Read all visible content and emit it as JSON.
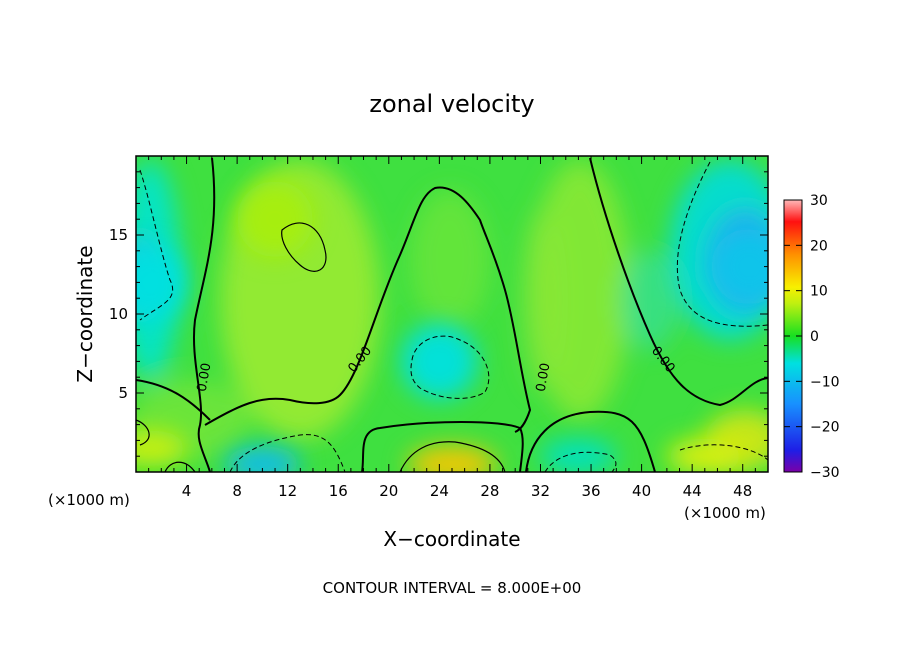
{
  "chart_data": {
    "type": "heatmap",
    "title": "zonal velocity",
    "xlabel": "X−coordinate",
    "ylabel": "Z−coordinate",
    "x_unit": "(×1000 m)",
    "y_unit": "(×1000 m)",
    "xlim": [
      0,
      50
    ],
    "ylim": [
      0,
      20
    ],
    "x_ticks": [
      "4",
      "8",
      "12",
      "16",
      "20",
      "24",
      "28",
      "32",
      "36",
      "40",
      "44",
      "48"
    ],
    "y_ticks": [
      "5",
      "10",
      "15"
    ],
    "colorbar": {
      "range": [
        -30,
        30
      ],
      "ticks": [
        "30",
        "20",
        "10",
        "0",
        "−10",
        "−20",
        "−30"
      ]
    },
    "contour_label": "0.00",
    "footer": "CONTOUR INTERVAL = 8.000E+00",
    "features": [
      {
        "x": 11,
        "z": 16,
        "value": 6
      },
      {
        "x": 24,
        "z": 7,
        "value": -6
      },
      {
        "x": 25,
        "z": 0.5,
        "value": 14
      },
      {
        "x": 48.5,
        "z": 13,
        "value": -9
      },
      {
        "x": 1,
        "z": 12,
        "value": -6
      },
      {
        "x": 10,
        "z": 0.5,
        "value": -10
      },
      {
        "x": 35,
        "z": 1,
        "value": -5
      },
      {
        "x": 45,
        "z": 1,
        "value": 9
      },
      {
        "x": 1,
        "z": 1.5,
        "value": 8
      }
    ]
  }
}
